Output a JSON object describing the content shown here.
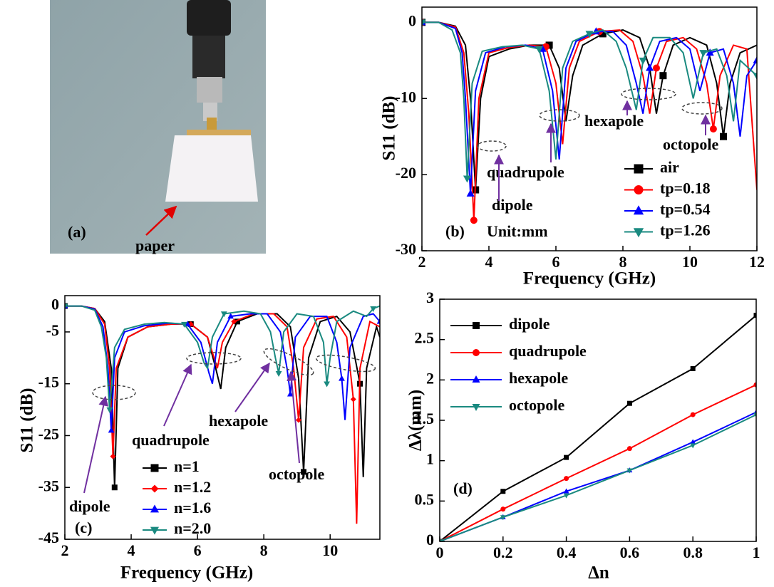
{
  "photo": {
    "panel_label": "(a)",
    "annotation": "paper"
  },
  "chart_data": [
    {
      "type": "line",
      "panel_label": "(b)",
      "x_label": "Frequency (GHz)",
      "y_label": "S11 (dB)",
      "annotations": [
        "dipole",
        "quadrupole",
        "hexapole",
        "octopole",
        "Unit:mm"
      ],
      "xlim": [
        2,
        12
      ],
      "ylim": [
        -30,
        2
      ],
      "xticks": [
        2,
        4,
        6,
        8,
        10,
        12
      ],
      "yticks": [
        0,
        -10,
        -20,
        -30
      ],
      "series": [
        {
          "name": "air",
          "color": "#000000",
          "marker": "square",
          "x": [
            2,
            2.5,
            3,
            3.3,
            3.45,
            3.6,
            3.75,
            4,
            4.6,
            5.2,
            5.8,
            6.1,
            6.3,
            6.5,
            6.8,
            7.4,
            8,
            8.5,
            8.8,
            9,
            9.2,
            9.5,
            10,
            10.5,
            10.8,
            11,
            11.2,
            11.5,
            12
          ],
          "values": [
            0,
            0,
            -0.5,
            -3,
            -10,
            -22,
            -10,
            -4.5,
            -3.5,
            -3,
            -3,
            -6,
            -13,
            -7,
            -3,
            -1.5,
            -1,
            -2,
            -6,
            -12,
            -7,
            -3,
            -2,
            -3,
            -8,
            -15,
            -8,
            -4,
            -3
          ]
        },
        {
          "name": "tp=0.18",
          "color": "#ff0000",
          "marker": "circle",
          "x": [
            2,
            2.5,
            3,
            3.25,
            3.4,
            3.55,
            3.7,
            4,
            4.6,
            5.2,
            5.7,
            6,
            6.2,
            6.4,
            6.7,
            7.3,
            7.9,
            8.3,
            8.6,
            8.8,
            9,
            9.3,
            9.8,
            10.2,
            10.5,
            10.7,
            10.9,
            11.3,
            11.7,
            12
          ],
          "values": [
            0,
            0,
            -0.6,
            -4,
            -12,
            -26,
            -10,
            -4,
            -3.3,
            -3,
            -3.2,
            -8,
            -16,
            -6,
            -2.5,
            -1.2,
            -1,
            -2.5,
            -7,
            -12,
            -6,
            -2.5,
            -2,
            -3.5,
            -8,
            -14,
            -7,
            -3,
            -3.5,
            -22
          ]
        },
        {
          "name": "tp=0.54",
          "color": "#0000ff",
          "marker": "up",
          "x": [
            2,
            2.5,
            3,
            3.2,
            3.3,
            3.45,
            3.6,
            3.9,
            4.5,
            5.1,
            5.6,
            5.9,
            6.1,
            6.3,
            6.6,
            7.2,
            7.7,
            8.1,
            8.4,
            8.6,
            8.8,
            9.1,
            9.6,
            10,
            10.3,
            10.6,
            11,
            11.3,
            11.5,
            11.7,
            12
          ],
          "values": [
            0,
            0,
            -0.8,
            -4,
            -10,
            -22.5,
            -9,
            -4,
            -3.2,
            -3,
            -3.5,
            -9,
            -18,
            -6,
            -2.5,
            -1.2,
            -1.2,
            -3,
            -8,
            -12,
            -6,
            -2.5,
            -2,
            -3.5,
            -9,
            -4,
            -3.5,
            -8,
            -15,
            -7,
            -5
          ]
        },
        {
          "name": "tp=1.26",
          "color": "#1a8a80",
          "marker": "down",
          "x": [
            2,
            2.5,
            2.9,
            3.15,
            3.25,
            3.35,
            3.5,
            3.8,
            4.4,
            5,
            5.5,
            5.8,
            6,
            6.2,
            6.5,
            7,
            7.4,
            7.8,
            8.1,
            8.4,
            8.6,
            8.9,
            9.4,
            9.8,
            10.1,
            10.4,
            10.8,
            11.1,
            11.3,
            11.5,
            12
          ],
          "values": [
            0,
            0,
            -1,
            -4,
            -10,
            -20.5,
            -8,
            -3.8,
            -3.2,
            -3,
            -3.5,
            -9,
            -18,
            -6,
            -2.5,
            -1.5,
            -1,
            -2.5,
            -6,
            -11.5,
            -5,
            -2,
            -2,
            -4,
            -10,
            -4,
            -3.5,
            -7,
            -13,
            -5,
            -7
          ]
        }
      ]
    },
    {
      "type": "line",
      "panel_label": "(c)",
      "x_label": "Frequency (GHz)",
      "y_label": "S11 (dB)",
      "annotations": [
        "dipole",
        "quadrupole",
        "hexapole",
        "octopole"
      ],
      "xlim": [
        2,
        11.5
      ],
      "ylim": [
        -45,
        2
      ],
      "xticks": [
        2,
        4,
        6,
        8,
        10
      ],
      "yticks": [
        0,
        -5,
        -15,
        -25,
        -35,
        -45
      ],
      "series": [
        {
          "name": "n=1",
          "color": "#000000",
          "marker": "square",
          "x": [
            2,
            2.5,
            2.9,
            3.2,
            3.4,
            3.5,
            3.6,
            3.9,
            4.5,
            5.2,
            5.8,
            6.3,
            6.55,
            6.7,
            6.85,
            7.2,
            7.8,
            8.4,
            8.8,
            9.05,
            9.2,
            9.35,
            9.7,
            10.2,
            10.6,
            10.9,
            11,
            11.1,
            11.4,
            11.5
          ],
          "values": [
            0,
            0,
            -0.5,
            -3,
            -12,
            -35,
            -12,
            -6,
            -4,
            -3.5,
            -3.5,
            -6,
            -12,
            -16,
            -8,
            -3,
            -1.5,
            -1.5,
            -4,
            -14,
            -32,
            -10,
            -3,
            -2,
            -5,
            -15,
            -33,
            -12,
            -4,
            -6
          ]
        },
        {
          "name": "n=1.2",
          "color": "#ff0000",
          "marker": "diamond",
          "x": [
            2,
            2.5,
            2.9,
            3.2,
            3.35,
            3.45,
            3.55,
            3.9,
            4.5,
            5.2,
            5.8,
            6.3,
            6.5,
            6.6,
            6.75,
            7.1,
            7.7,
            8.3,
            8.7,
            8.9,
            9.05,
            9.2,
            9.6,
            10.1,
            10.5,
            10.7,
            10.8,
            10.9,
            11.2,
            11.5
          ],
          "values": [
            0,
            0,
            -0.5,
            -3.5,
            -12,
            -29,
            -12,
            -6,
            -4,
            -3.5,
            -3.5,
            -6,
            -10,
            -12,
            -7,
            -3,
            -1.5,
            -1.5,
            -4,
            -12,
            -22,
            -8,
            -2.5,
            -2,
            -6,
            -18,
            -42,
            -12,
            -3,
            -4
          ]
        },
        {
          "name": "n=1.6",
          "color": "#0000ff",
          "marker": "up",
          "x": [
            2,
            2.5,
            2.9,
            3.15,
            3.3,
            3.4,
            3.5,
            3.8,
            4.4,
            5.1,
            5.7,
            6.1,
            6.35,
            6.45,
            6.6,
            7,
            7.6,
            8.1,
            8.5,
            8.7,
            8.8,
            8.95,
            9.4,
            9.9,
            10.2,
            10.35,
            10.45,
            10.6,
            11,
            11.3,
            11.5
          ],
          "values": [
            0,
            0,
            -0.6,
            -4,
            -12,
            -24,
            -10,
            -5,
            -3.8,
            -3.3,
            -3.5,
            -7,
            -13,
            -15,
            -7,
            -2,
            -1.5,
            -1.5,
            -5,
            -12,
            -17,
            -6,
            -2,
            -2,
            -7,
            -14,
            -22,
            -8,
            -2,
            -1.5,
            -3
          ]
        },
        {
          "name": "n=2.0",
          "color": "#1a8a80",
          "marker": "down",
          "x": [
            2,
            2.5,
            2.9,
            3.1,
            3.25,
            3.35,
            3.5,
            3.8,
            4.4,
            5,
            5.6,
            6,
            6.2,
            6.3,
            6.45,
            6.8,
            7.4,
            7.9,
            8.2,
            8.35,
            8.45,
            8.6,
            9,
            9.5,
            9.8,
            9.9,
            10,
            10.2,
            10.7,
            11.1,
            11.3,
            11.5
          ],
          "values": [
            0,
            0,
            -0.8,
            -4,
            -10,
            -20,
            -8,
            -4.5,
            -3.5,
            -3.2,
            -3.5,
            -7,
            -11,
            -12,
            -6,
            -1.5,
            -1,
            -1.5,
            -5,
            -10,
            -13,
            -5,
            -1.5,
            -2,
            -7,
            -15,
            -10,
            -3,
            -1,
            -2,
            -0.5,
            0
          ]
        }
      ]
    },
    {
      "type": "line",
      "panel_label": "(d)",
      "x_label": "Δn",
      "y_label": "Δλ(mm)",
      "xlim": [
        0,
        1
      ],
      "ylim": [
        0,
        3
      ],
      "xticks": [
        0,
        0.2,
        0.4,
        0.6,
        0.8,
        1
      ],
      "yticks": [
        0,
        0.5,
        1,
        1.5,
        2,
        2.5,
        3
      ],
      "x": [
        0,
        0.2,
        0.4,
        0.6,
        0.8,
        1
      ],
      "series": [
        {
          "name": "dipole",
          "color": "#000000",
          "marker": "square",
          "values": [
            0,
            0.62,
            1.04,
            1.71,
            2.14,
            2.8
          ]
        },
        {
          "name": "quadrupole",
          "color": "#ff0000",
          "marker": "circle",
          "values": [
            0,
            0.4,
            0.78,
            1.15,
            1.57,
            1.94
          ]
        },
        {
          "name": "hexapole",
          "color": "#0000ff",
          "marker": "up",
          "values": [
            0,
            0.3,
            0.62,
            0.88,
            1.23,
            1.6
          ]
        },
        {
          "name": "octopole",
          "color": "#1a8a80",
          "marker": "down",
          "values": [
            0,
            0.3,
            0.57,
            0.88,
            1.19,
            1.57
          ]
        }
      ]
    }
  ]
}
